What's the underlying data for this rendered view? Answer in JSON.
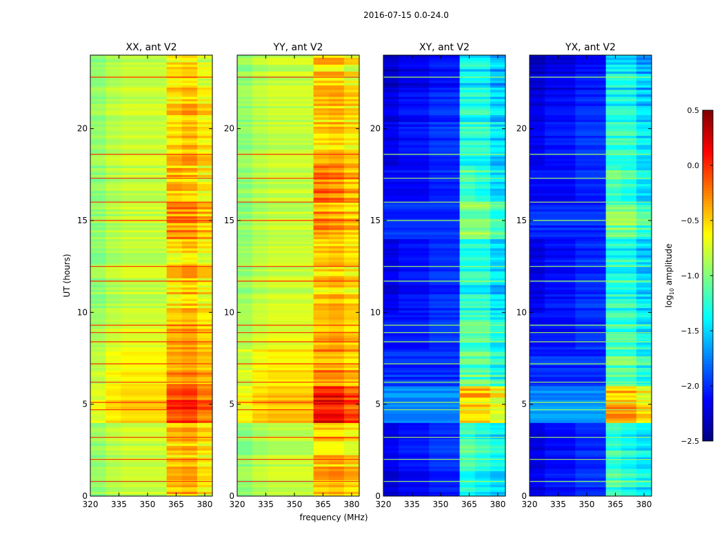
{
  "chart_data": {
    "type": "heatmap",
    "title": "2016-07-15 0.0-24.0",
    "xlabel": "frequency (MHz)",
    "ylabel": "UT (hours)",
    "xlim": [
      320,
      384
    ],
    "ylim": [
      0,
      24
    ],
    "xticks": [
      "320",
      "335",
      "350",
      "365",
      "380"
    ],
    "yticks": [
      "0",
      "5",
      "10",
      "15",
      "20"
    ],
    "freq_bins": [
      320,
      328,
      336,
      344,
      352,
      360,
      368,
      376,
      384
    ],
    "hour_bins": [
      0,
      2,
      4,
      6,
      8,
      10,
      12,
      14,
      16,
      18,
      20,
      22,
      24
    ],
    "colorbar": {
      "label": "log10 amplitude",
      "label_main": "log",
      "label_sub": "10",
      "label_rest": " amplitude",
      "range": [
        -2.5,
        0.5
      ],
      "ticks": [
        "0.5",
        "0.0",
        "−0.5",
        "−1.0",
        "−1.5",
        "−2.0",
        "−2.5"
      ],
      "colormap": "jet"
    },
    "panels": [
      {
        "title": "XX, ant V2",
        "values": [
          [
            -0.95,
            -0.85,
            -0.8,
            -0.8,
            -0.8,
            -0.45,
            -0.4,
            -0.6
          ],
          [
            -0.95,
            -0.85,
            -0.8,
            -0.8,
            -0.8,
            -0.5,
            -0.45,
            -0.6
          ],
          [
            -0.7,
            -0.55,
            -0.5,
            -0.5,
            -0.5,
            -0.05,
            0.0,
            -0.2
          ],
          [
            -0.8,
            -0.65,
            -0.6,
            -0.6,
            -0.6,
            -0.35,
            -0.3,
            -0.4
          ],
          [
            -0.9,
            -0.8,
            -0.75,
            -0.75,
            -0.75,
            -0.45,
            -0.4,
            -0.55
          ],
          [
            -0.95,
            -0.85,
            -0.8,
            -0.8,
            -0.8,
            -0.55,
            -0.45,
            -0.6
          ],
          [
            -0.95,
            -0.85,
            -0.8,
            -0.8,
            -0.8,
            -0.55,
            -0.45,
            -0.6
          ],
          [
            -0.95,
            -0.85,
            -0.8,
            -0.8,
            -0.8,
            -0.3,
            -0.3,
            -0.45
          ],
          [
            -0.95,
            -0.85,
            -0.8,
            -0.8,
            -0.8,
            -0.4,
            -0.45,
            -0.6
          ],
          [
            -0.95,
            -0.85,
            -0.8,
            -0.8,
            -0.8,
            -0.55,
            -0.45,
            -0.6
          ],
          [
            -0.95,
            -0.85,
            -0.8,
            -0.8,
            -0.8,
            -0.55,
            -0.45,
            -0.6
          ],
          [
            -0.95,
            -0.85,
            -0.8,
            -0.8,
            -0.8,
            -0.55,
            -0.5,
            -0.7
          ]
        ]
      },
      {
        "title": "YY, ant V2",
        "values": [
          [
            -0.95,
            -0.85,
            -0.8,
            -0.8,
            -0.8,
            -0.45,
            -0.4,
            -0.5
          ],
          [
            -0.95,
            -0.85,
            -0.8,
            -0.8,
            -0.8,
            -0.45,
            -0.45,
            -0.55
          ],
          [
            -0.65,
            -0.5,
            -0.45,
            -0.45,
            -0.45,
            0.1,
            0.1,
            -0.1
          ],
          [
            -0.75,
            -0.6,
            -0.55,
            -0.55,
            -0.55,
            -0.3,
            -0.3,
            -0.4
          ],
          [
            -0.9,
            -0.8,
            -0.75,
            -0.75,
            -0.75,
            -0.5,
            -0.45,
            -0.55
          ],
          [
            -0.95,
            -0.85,
            -0.8,
            -0.8,
            -0.8,
            -0.55,
            -0.5,
            -0.6
          ],
          [
            -0.95,
            -0.85,
            -0.8,
            -0.8,
            -0.8,
            -0.55,
            -0.5,
            -0.6
          ],
          [
            -0.95,
            -0.85,
            -0.8,
            -0.8,
            -0.8,
            -0.3,
            -0.35,
            -0.45
          ],
          [
            -0.95,
            -0.85,
            -0.8,
            -0.8,
            -0.8,
            -0.2,
            -0.25,
            -0.4
          ],
          [
            -0.95,
            -0.85,
            -0.8,
            -0.8,
            -0.8,
            -0.5,
            -0.45,
            -0.55
          ],
          [
            -0.95,
            -0.85,
            -0.8,
            -0.8,
            -0.8,
            -0.5,
            -0.45,
            -0.55
          ],
          [
            -0.95,
            -0.85,
            -0.8,
            -0.8,
            -0.8,
            -0.5,
            -0.5,
            -0.65
          ]
        ]
      },
      {
        "title": "XY, ant V2",
        "values": [
          [
            -2.2,
            -2.1,
            -2.1,
            -2.0,
            -2.0,
            -1.2,
            -1.3,
            -1.4
          ],
          [
            -2.2,
            -2.1,
            -2.1,
            -2.0,
            -2.0,
            -1.2,
            -1.3,
            -1.4
          ],
          [
            -1.7,
            -1.7,
            -1.7,
            -1.7,
            -1.7,
            -0.4,
            -0.4,
            -0.6
          ],
          [
            -2.0,
            -2.0,
            -2.0,
            -2.0,
            -2.0,
            -1.1,
            -1.1,
            -1.3
          ],
          [
            -2.1,
            -2.1,
            -2.1,
            -2.0,
            -2.0,
            -1.2,
            -1.2,
            -1.4
          ],
          [
            -2.2,
            -2.1,
            -2.1,
            -2.0,
            -2.0,
            -1.3,
            -1.3,
            -1.5
          ],
          [
            -2.2,
            -2.1,
            -2.1,
            -2.0,
            -2.0,
            -1.3,
            -1.3,
            -1.5
          ],
          [
            -2.0,
            -2.0,
            -2.0,
            -2.0,
            -2.0,
            -1.0,
            -1.0,
            -1.2
          ],
          [
            -2.1,
            -2.1,
            -2.1,
            -2.0,
            -2.0,
            -1.1,
            -1.2,
            -1.4
          ],
          [
            -2.2,
            -2.1,
            -2.1,
            -2.0,
            -2.0,
            -1.3,
            -1.3,
            -1.5
          ],
          [
            -2.2,
            -2.1,
            -2.1,
            -2.0,
            -2.0,
            -1.3,
            -1.3,
            -1.5
          ],
          [
            -2.3,
            -2.2,
            -2.2,
            -2.1,
            -2.1,
            -1.4,
            -1.4,
            -1.6
          ]
        ]
      },
      {
        "title": "YX, ant V2",
        "values": [
          [
            -2.2,
            -2.1,
            -2.1,
            -2.0,
            -2.0,
            -1.2,
            -1.3,
            -1.4
          ],
          [
            -2.2,
            -2.1,
            -2.1,
            -2.0,
            -2.0,
            -1.2,
            -1.3,
            -1.4
          ],
          [
            -1.7,
            -1.7,
            -1.7,
            -1.7,
            -1.7,
            -0.4,
            -0.4,
            -0.6
          ],
          [
            -2.0,
            -2.0,
            -2.0,
            -2.0,
            -2.0,
            -1.1,
            -1.1,
            -1.3
          ],
          [
            -2.1,
            -2.1,
            -2.1,
            -2.0,
            -2.0,
            -1.2,
            -1.2,
            -1.4
          ],
          [
            -2.2,
            -2.1,
            -2.1,
            -2.0,
            -2.0,
            -1.3,
            -1.3,
            -1.5
          ],
          [
            -2.2,
            -2.1,
            -2.1,
            -2.0,
            -2.0,
            -1.3,
            -1.3,
            -1.5
          ],
          [
            -2.0,
            -2.0,
            -2.0,
            -2.0,
            -2.0,
            -1.0,
            -1.0,
            -1.2
          ],
          [
            -2.1,
            -2.1,
            -2.1,
            -2.0,
            -2.0,
            -1.1,
            -1.2,
            -1.4
          ],
          [
            -2.2,
            -2.1,
            -2.1,
            -2.0,
            -2.0,
            -1.3,
            -1.3,
            -1.5
          ],
          [
            -2.2,
            -2.1,
            -2.1,
            -2.0,
            -2.0,
            -1.3,
            -1.3,
            -1.5
          ],
          [
            -2.3,
            -2.2,
            -2.2,
            -2.1,
            -2.1,
            -1.4,
            -1.4,
            -1.6
          ]
        ]
      }
    ],
    "flagged_rows_hours": [
      0.8,
      2.0,
      3.2,
      4.7,
      5.1,
      6.2,
      7.2,
      8.4,
      8.9,
      9.3,
      11.7,
      12.5,
      15.0,
      16.0,
      17.3,
      18.6,
      22.8
    ],
    "flagged_rows_value": 0.0
  }
}
